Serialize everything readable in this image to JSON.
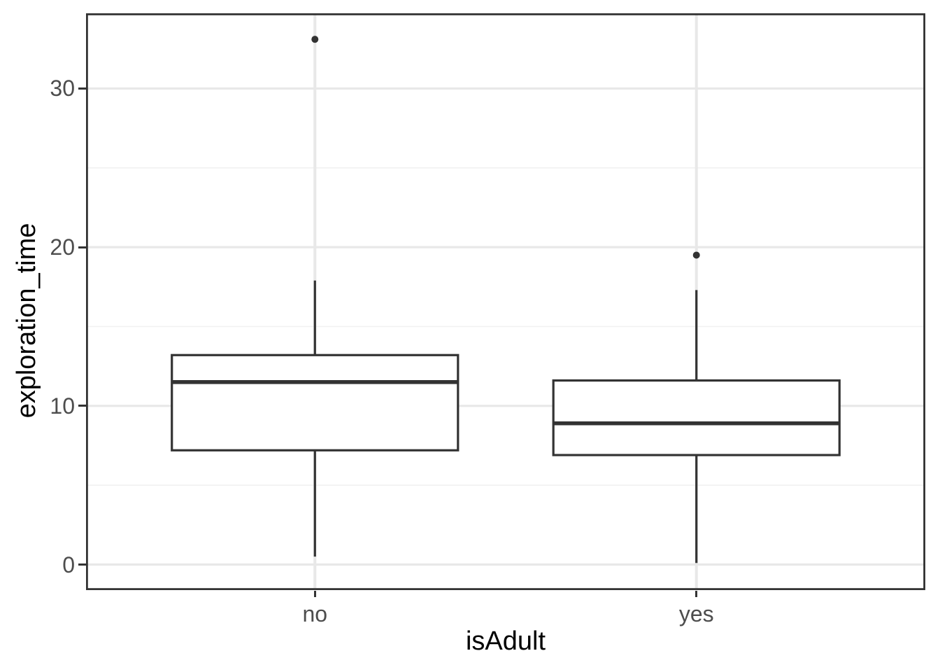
{
  "chart_data": {
    "type": "boxplot",
    "title": "",
    "xlabel": "isAdult",
    "ylabel": "exploration_time",
    "categories": [
      "no",
      "yes"
    ],
    "series": [
      {
        "category": "no",
        "whisker_low": 0.5,
        "q1": 7.2,
        "median": 11.5,
        "q3": 13.2,
        "whisker_high": 17.9,
        "outliers": [
          33.1
        ]
      },
      {
        "category": "yes",
        "whisker_low": 0.1,
        "q1": 6.9,
        "median": 8.9,
        "q3": 11.6,
        "whisker_high": 17.3,
        "outliers": [
          19.5
        ]
      }
    ],
    "y_ticks": [
      0,
      10,
      20,
      30
    ],
    "y_minor_ticks": [
      5,
      15,
      25
    ],
    "ylim": [
      -1.61,
      34.74
    ],
    "grid": true,
    "legend": "none"
  },
  "style": {
    "background": "#FFFFFF",
    "panel_border": "#333333",
    "box_stroke": "#333333",
    "box_fill": "#FFFFFF",
    "outlier_color": "#333333",
    "grid_major": "#E8E8E8",
    "grid_minor": "#F1F1F1",
    "tick_mark_color": "#333333",
    "tick_label_color": "#4D4D4D",
    "axis_title_color": "#000000"
  }
}
